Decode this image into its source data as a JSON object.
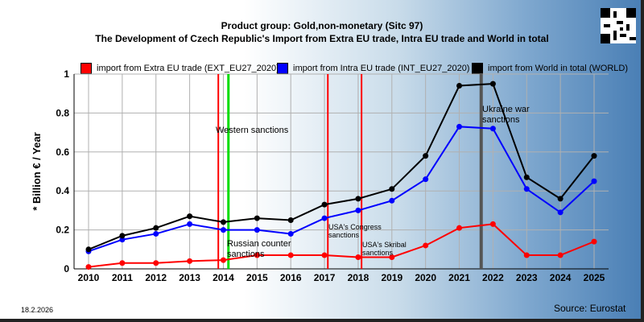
{
  "header": {
    "title": "Product group: Gold,non-monetary (Sitc 97)",
    "subtitle": "The Development of Czech Republic's Import from Extra EU trade, Intra EU trade and World in total"
  },
  "footer": {
    "date": "18.2.2026",
    "source": "Source: Eurostat"
  },
  "chart_data": {
    "type": "line",
    "ylabel": "* Billion € / Year",
    "ylim": [
      0,
      1
    ],
    "yticks": [
      "0",
      "0.2",
      "0.4",
      "0.6",
      "0.8",
      "1"
    ],
    "x": [
      "2010",
      "2011",
      "2012",
      "2013",
      "2014",
      "2015",
      "2016",
      "2017",
      "2018",
      "2019",
      "2020",
      "2021",
      "2022",
      "2023",
      "2024",
      "2025"
    ],
    "grid": true,
    "legend_position": "top",
    "series": [
      {
        "name": "import from Extra EU trade (EXT_EU27_2020)",
        "color": "#ff0000",
        "values": [
          0.01,
          0.03,
          0.03,
          0.04,
          0.045,
          0.07,
          0.07,
          0.07,
          0.06,
          0.06,
          0.12,
          0.21,
          0.23,
          0.07,
          0.07,
          0.14
        ]
      },
      {
        "name": "import from Intra EU trade (INT_EU27_2020)",
        "color": "#0000ff",
        "values": [
          0.09,
          0.15,
          0.18,
          0.23,
          0.2,
          0.2,
          0.18,
          0.26,
          0.3,
          0.35,
          0.46,
          0.73,
          0.72,
          0.41,
          0.29,
          0.45
        ]
      },
      {
        "name": "import from World in total (WORLD)",
        "color": "#000000",
        "values": [
          0.1,
          0.17,
          0.21,
          0.27,
          0.24,
          0.26,
          0.25,
          0.33,
          0.36,
          0.41,
          0.58,
          0.94,
          0.95,
          0.47,
          0.36,
          0.58
        ]
      }
    ],
    "annotations": [
      {
        "id": "western",
        "x": 2013.85,
        "color": "#ff0000",
        "label": "Western sanctions"
      },
      {
        "id": "western2",
        "x": 2014.15,
        "color": "#00dd00",
        "label": ""
      },
      {
        "id": "russian",
        "x": 2014.15,
        "color": "",
        "label": "Russian counter sanctions"
      },
      {
        "id": "usa-congress",
        "x": 2017.1,
        "color": "#ff0000",
        "label": "USA's Congress sanctions"
      },
      {
        "id": "usa-skribal",
        "x": 2018.1,
        "color": "#ff0000",
        "label": "USA's Skribal sanctions"
      },
      {
        "id": "ukraine",
        "x": 2021.65,
        "color": "#555555",
        "label": "Ukraine war sanctions"
      }
    ]
  }
}
